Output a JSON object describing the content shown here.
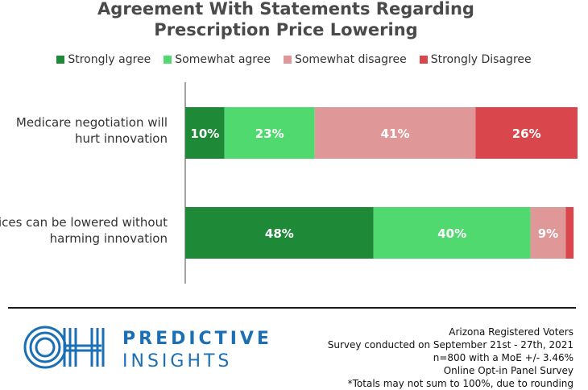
{
  "chart_data": {
    "type": "bar",
    "orientation": "horizontal",
    "stacked": true,
    "title": "Agreement With Statements Regarding Prescription Price Lowering",
    "title_lines": [
      "Agreement With Statements Regarding",
      "Prescription Price Lowering"
    ],
    "categories": [
      "Medicare negotiation will hurt innovation",
      "Prices can be lowered without harming innovation"
    ],
    "category_lines": [
      [
        "Medicare negotiation will",
        "hurt innovation"
      ],
      [
        "Prices can be lowered without",
        "harming innovation"
      ]
    ],
    "series": [
      {
        "name": "Strongly agree",
        "color": "#1e8a38",
        "values": [
          10,
          48
        ],
        "labels": [
          "10%",
          "48%"
        ]
      },
      {
        "name": "Somewhat agree",
        "color": "#4fd96f",
        "values": [
          23,
          40
        ],
        "labels": [
          "23%",
          "40%"
        ]
      },
      {
        "name": "Somewhat disagree",
        "color": "#e09797",
        "values": [
          41,
          9
        ],
        "labels": [
          "41%",
          "9%"
        ]
      },
      {
        "name": "Strongly Disagree",
        "color": "#d9474d",
        "values": [
          26,
          2
        ],
        "labels": [
          "26%",
          ""
        ]
      }
    ],
    "xlim": [
      0,
      100
    ],
    "legend": "top",
    "grid": false
  },
  "footer": {
    "logo": {
      "letters": "OH",
      "line1": "PREDICTIVE",
      "line2": "INSIGHTS",
      "color": "#1a6fb5"
    },
    "notes": [
      "Arizona Registered Voters",
      "Survey conducted on September 21st - 27th, 2021",
      "n=800 with a MoE +/- 3.46%",
      "Online Opt-in Panel Survey",
      "*Totals may not sum to 100%, due to rounding"
    ]
  }
}
